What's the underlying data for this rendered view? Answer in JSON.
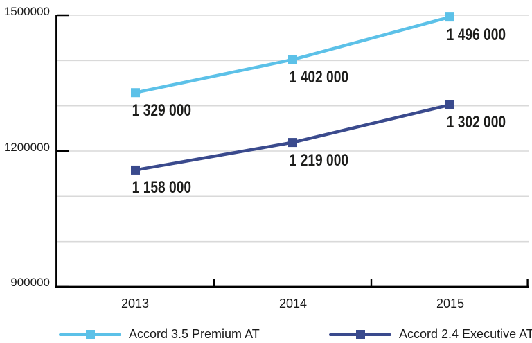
{
  "chart_data": {
    "type": "line",
    "categories": [
      "2013",
      "2014",
      "2015"
    ],
    "series": [
      {
        "name": "Accord 3.5 Premium AT",
        "color": "#5cc1e8",
        "values": [
          1329000,
          1402000,
          1496000
        ],
        "labels": [
          "1 329 000",
          "1 402 000",
          "1 496 000"
        ]
      },
      {
        "name": "Accord 2.4 Executive AT",
        "color": "#3a4a8d",
        "values": [
          1158000,
          1219000,
          1302000
        ],
        "labels": [
          "1 158 000",
          "1 219 000",
          "1 302 000"
        ]
      }
    ],
    "title": "",
    "xlabel": "",
    "ylabel": "",
    "ylim": [
      900000,
      1500000
    ],
    "gridline_interval": 100000,
    "yticks_labeled": [
      {
        "value": 900000,
        "label": "900000"
      },
      {
        "value": 1200000,
        "label": "1200000"
      },
      {
        "value": 1500000,
        "label": "1500000"
      }
    ],
    "grid": "horizontal",
    "legend_position": "bottom",
    "colors": {
      "grid": "#d9d9d9",
      "axis": "#000000",
      "text": "#1a1a1a",
      "series1": "#5cc1e8",
      "series2": "#3a4a8d"
    }
  }
}
